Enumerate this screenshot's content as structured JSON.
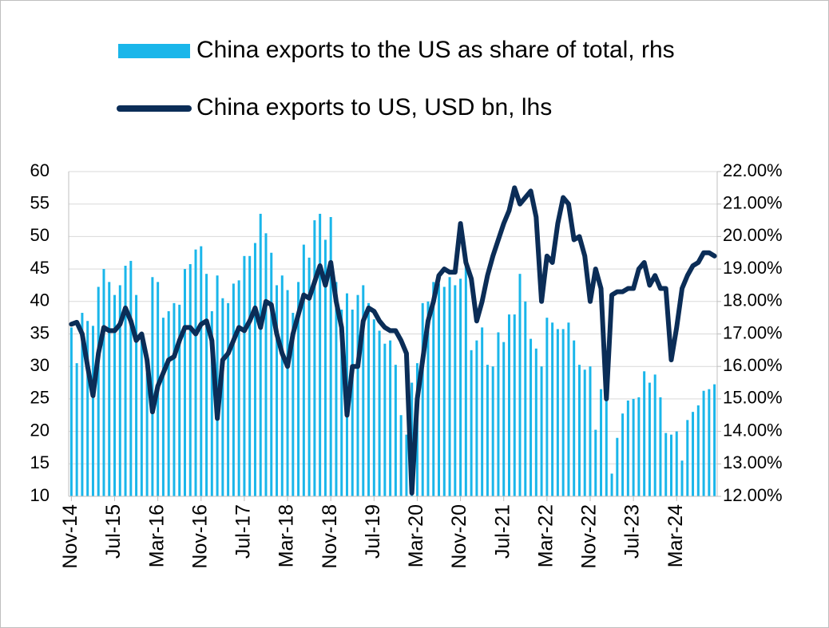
{
  "chart_data": {
    "type": "combo",
    "categories": [
      "Nov-14",
      null,
      null,
      null,
      null,
      null,
      null,
      null,
      "Jul-15",
      null,
      null,
      null,
      null,
      null,
      null,
      null,
      "Mar-16",
      null,
      null,
      null,
      null,
      null,
      null,
      null,
      "Nov-16",
      null,
      null,
      null,
      null,
      null,
      null,
      null,
      "Jul-17",
      null,
      null,
      null,
      null,
      null,
      null,
      null,
      "Mar-18",
      null,
      null,
      null,
      null,
      null,
      null,
      null,
      "Nov-18",
      null,
      null,
      null,
      null,
      null,
      null,
      null,
      "Jul-19",
      null,
      null,
      null,
      null,
      null,
      null,
      null,
      "Mar-20",
      null,
      null,
      null,
      null,
      null,
      null,
      null,
      "Nov-20",
      null,
      null,
      null,
      null,
      null,
      null,
      null,
      "Jul-21",
      null,
      null,
      null,
      null,
      null,
      null,
      null,
      "Mar-22",
      null,
      null,
      null,
      null,
      null,
      null,
      null,
      "Nov-22",
      null,
      null,
      null,
      null,
      null,
      null,
      null,
      "Jul-23",
      null,
      null,
      null,
      null,
      null,
      null,
      null,
      "Mar-24",
      null,
      null,
      null,
      null,
      null,
      null,
      null
    ],
    "series": [
      {
        "name": "China exports to the US as share of total, rhs",
        "type": "bar",
        "axis": "y2",
        "color": "#1ab6ea",
        "values": [
          17.2,
          16.1,
          17.65,
          17.4,
          17.25,
          18.45,
          19.0,
          18.6,
          18.2,
          18.5,
          19.1,
          19.25,
          18.2,
          17.0,
          15.8,
          18.75,
          18.6,
          17.5,
          17.7,
          17.95,
          17.9,
          19.0,
          19.15,
          19.6,
          19.7,
          18.85,
          17.7,
          18.8,
          18.1,
          17.95,
          18.55,
          18.65,
          19.4,
          19.4,
          19.8,
          20.7,
          20.1,
          19.5,
          18.5,
          18.8,
          18.35,
          17.65,
          18.6,
          19.75,
          19.35,
          20.5,
          20.7,
          19.9,
          20.6,
          18.6,
          17.75,
          18.25,
          17.75,
          18.2,
          18.5,
          17.95,
          17.45,
          17.1,
          16.7,
          16.8,
          16.05,
          14.5,
          13.9,
          15.5,
          16.1,
          17.95,
          18.0,
          18.6,
          18.55,
          18.45,
          18.75,
          18.5,
          18.7,
          19.2,
          16.5,
          16.8,
          17.2,
          16.05,
          16.0,
          17.05,
          16.75,
          17.6,
          17.6,
          18.85,
          18.0,
          16.85,
          16.55,
          16.0,
          17.5,
          17.35,
          17.15,
          17.15,
          17.35,
          16.8,
          16.05,
          15.9,
          16.0,
          14.05,
          15.3,
          15.3,
          12.7,
          13.8,
          14.55,
          14.95,
          15.0,
          15.05,
          15.85,
          15.5,
          15.75,
          15.05,
          13.95,
          13.9,
          14.0,
          13.1,
          14.35,
          14.6,
          14.8,
          15.25,
          15.3,
          15.45
        ]
      },
      {
        "name": "China exports to US, USD bn, lhs",
        "type": "line",
        "axis": "y",
        "color": "#0b2d57",
        "values": [
          36.5,
          36.8,
          35,
          30,
          25.5,
          32,
          36,
          35.5,
          35.5,
          36.5,
          39,
          37,
          34,
          35,
          31,
          23,
          27,
          29,
          31,
          31.5,
          34,
          36,
          36,
          35,
          36.5,
          37,
          34,
          22,
          31,
          32,
          34,
          36,
          35.5,
          37,
          39,
          36,
          40,
          39.5,
          35,
          32,
          30,
          35,
          38,
          41,
          40.5,
          43,
          45.5,
          42.5,
          46,
          40,
          36,
          22.5,
          30,
          30,
          37,
          39,
          38.5,
          37,
          36,
          35.5,
          35.5,
          34,
          32,
          10.5,
          25,
          31,
          37,
          40,
          44,
          45,
          44.5,
          44.5,
          52,
          46,
          43.5,
          37,
          40,
          44,
          47,
          49.5,
          52,
          54,
          57.5,
          55,
          56,
          57,
          53,
          40,
          47,
          46,
          52,
          56,
          55,
          49.5,
          50,
          47,
          40,
          45,
          42,
          25,
          41,
          41.5,
          41.5,
          42,
          42,
          45,
          46,
          42.5,
          44,
          42,
          42,
          31,
          36,
          42,
          44,
          45.5,
          46,
          47.5,
          47.5,
          47
        ]
      }
    ],
    "ylim": [
      10,
      60
    ],
    "yticks": [
      10,
      15,
      20,
      25,
      30,
      35,
      40,
      45,
      50,
      55,
      60
    ],
    "y2lim": [
      12,
      22
    ],
    "y2ticks": [
      {
        "value": 12,
        "label": "12.00%"
      },
      {
        "value": 13,
        "label": "13.00%"
      },
      {
        "value": 14,
        "label": "14.00%"
      },
      {
        "value": 15,
        "label": "15.00%"
      },
      {
        "value": 16,
        "label": "16.00%"
      },
      {
        "value": 17,
        "label": "17.00%"
      },
      {
        "value": 18,
        "label": "18.00%"
      },
      {
        "value": 19,
        "label": "19.00%"
      },
      {
        "value": 20,
        "label": "20.00%"
      },
      {
        "value": 21,
        "label": "21.00%"
      },
      {
        "value": 22,
        "label": "22.00%"
      }
    ],
    "grid": true,
    "legend": "top"
  }
}
